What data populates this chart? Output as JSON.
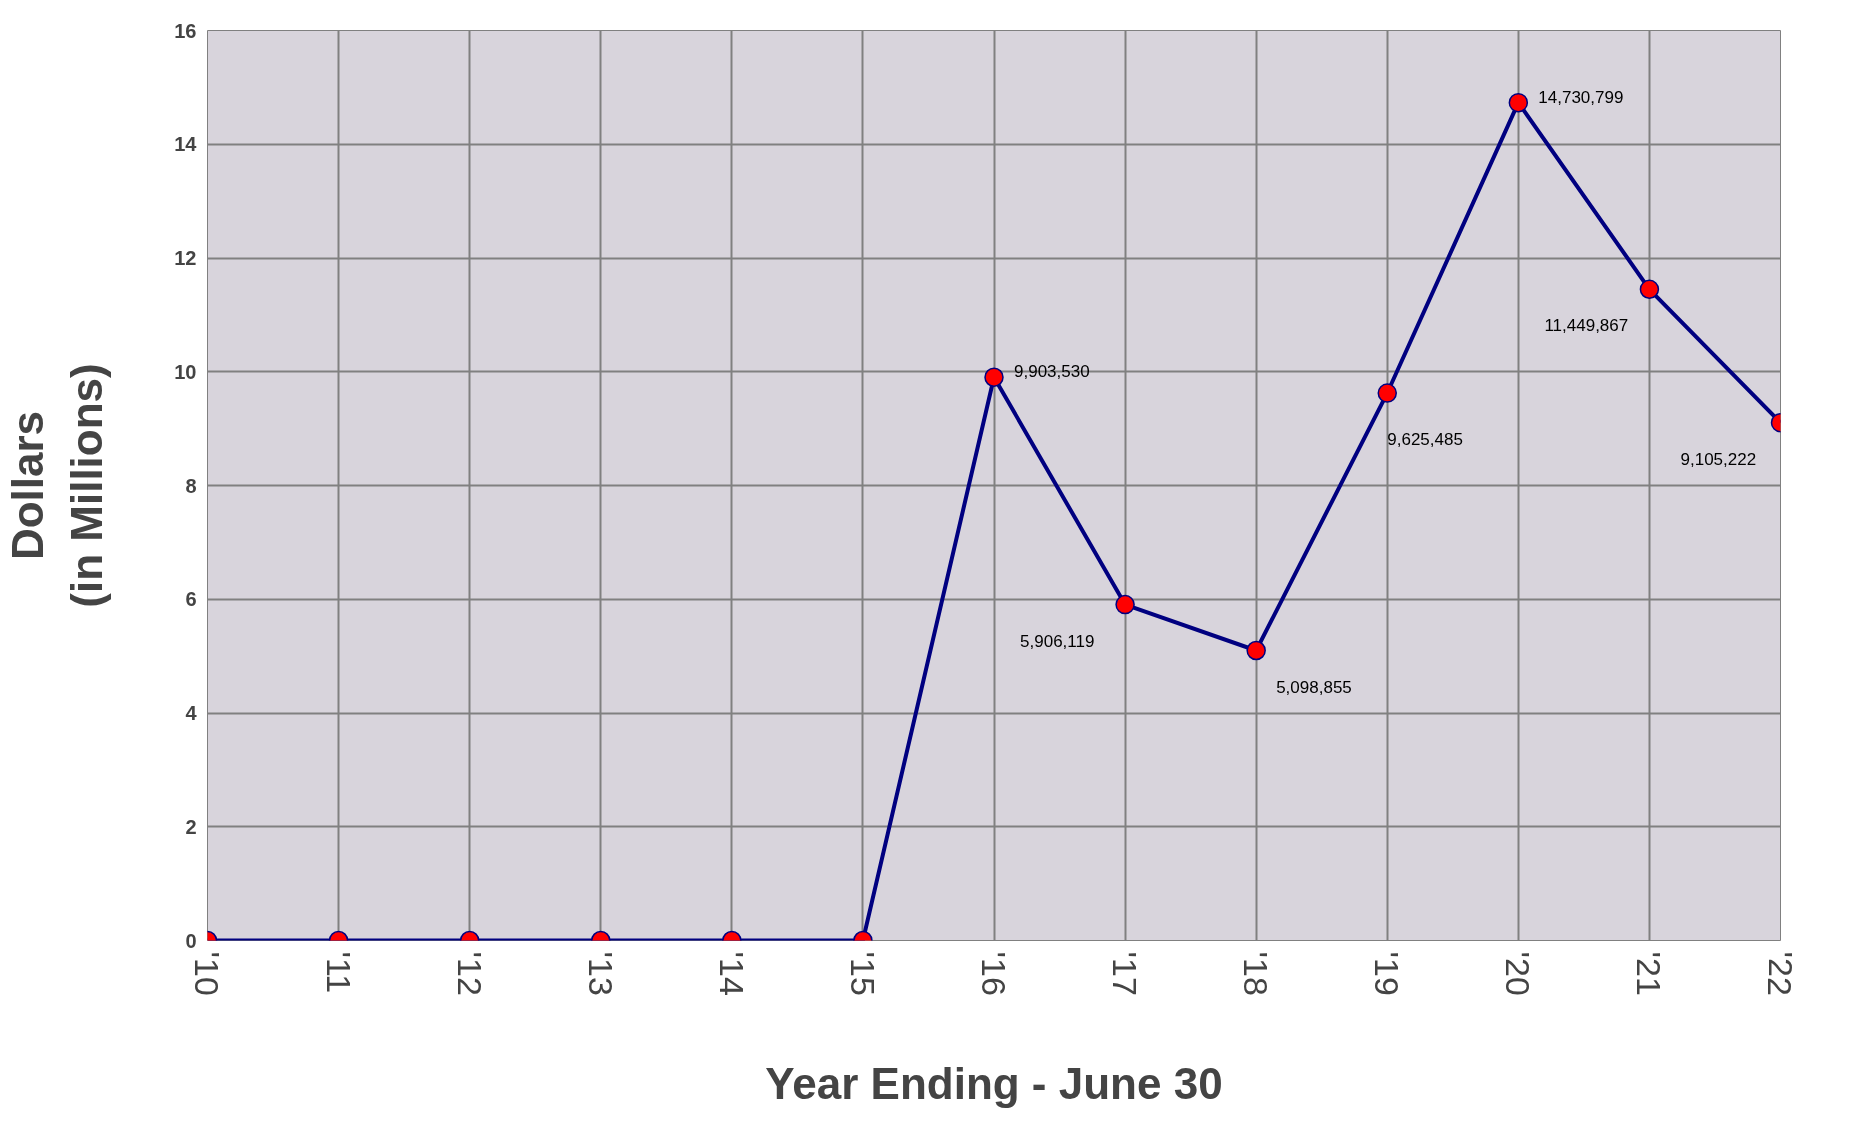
{
  "chart_data": {
    "type": "line",
    "xlabel": "Year Ending - June 30",
    "ylabel": "Dollars\n(in Millions)",
    "categories": [
      "'10",
      "'11",
      "'12",
      "'13",
      "'14",
      "'15",
      "'16",
      "'17",
      "'18",
      "'19",
      "'20",
      "'21",
      "'22"
    ],
    "series": [
      {
        "color": "#000080",
        "values": [
          0,
          0,
          0,
          0,
          0,
          0,
          9.90353,
          5.906119,
          5.098855,
          9.625485,
          14.730799,
          11.449867,
          9.105222
        ]
      }
    ],
    "annotations": [
      {
        "text": "9,903,530",
        "x": "'16",
        "y": 9.90353
      },
      {
        "text": "5,906,119",
        "x": "'17",
        "y": 5.906119
      },
      {
        "text": "5,098,855",
        "x": "'18",
        "y": 5.098855
      },
      {
        "text": "9,625,485",
        "x": "'19",
        "y": 9.625485
      },
      {
        "text": "14,730,799",
        "x": "'20",
        "y": 14.730799
      },
      {
        "text": "11,449,867",
        "x": "'21",
        "y": 11.449867
      },
      {
        "text": "9,105,222",
        "x": "'22",
        "y": 9.105222
      }
    ],
    "ylim": [
      0,
      16
    ],
    "yticks": [
      0,
      2,
      4,
      6,
      8,
      10,
      12,
      14,
      16
    ],
    "grid": true,
    "marker": "circle"
  }
}
